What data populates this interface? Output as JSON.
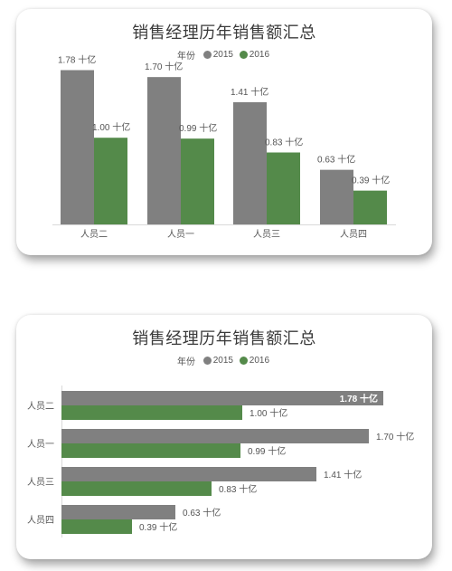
{
  "colors": {
    "s2015": "#808080",
    "s2016": "#548a4a"
  },
  "chart_data": [
    {
      "type": "bar",
      "orientation": "vertical",
      "title": "销售经理历年销售额汇总",
      "legend": {
        "title": "年份",
        "position": "top-center"
      },
      "categories": [
        "人员二",
        "人员一",
        "人员三",
        "人员四"
      ],
      "series": [
        {
          "name": "2015",
          "values": [
            1.78,
            1.7,
            1.41,
            0.63
          ],
          "labels": [
            "1.78 十亿",
            "1.70 十亿",
            "1.41 十亿",
            "0.63 十亿"
          ]
        },
        {
          "name": "2016",
          "values": [
            1.0,
            0.99,
            0.83,
            0.39
          ],
          "labels": [
            "1.00 十亿",
            "0.99 十亿",
            "0.83 十亿",
            "0.39 十亿"
          ]
        }
      ],
      "ylim": [
        0,
        1.9
      ],
      "grid": false
    },
    {
      "type": "bar",
      "orientation": "horizontal",
      "title": "销售经理历年销售额汇总",
      "legend": {
        "title": "年份",
        "position": "top-center"
      },
      "categories": [
        "人员二",
        "人员一",
        "人员三",
        "人员四"
      ],
      "series": [
        {
          "name": "2015",
          "values": [
            1.78,
            1.7,
            1.41,
            0.63
          ],
          "labels": [
            "1.78 十亿",
            "1.70 十亿",
            "1.41 十亿",
            "0.63 十亿"
          ]
        },
        {
          "name": "2016",
          "values": [
            1.0,
            0.99,
            0.83,
            0.39
          ],
          "labels": [
            "1.00 十亿",
            "0.99 十亿",
            "0.83 十亿",
            "0.39 十亿"
          ]
        }
      ],
      "xlim": [
        0,
        1.8
      ],
      "grid": false
    }
  ]
}
